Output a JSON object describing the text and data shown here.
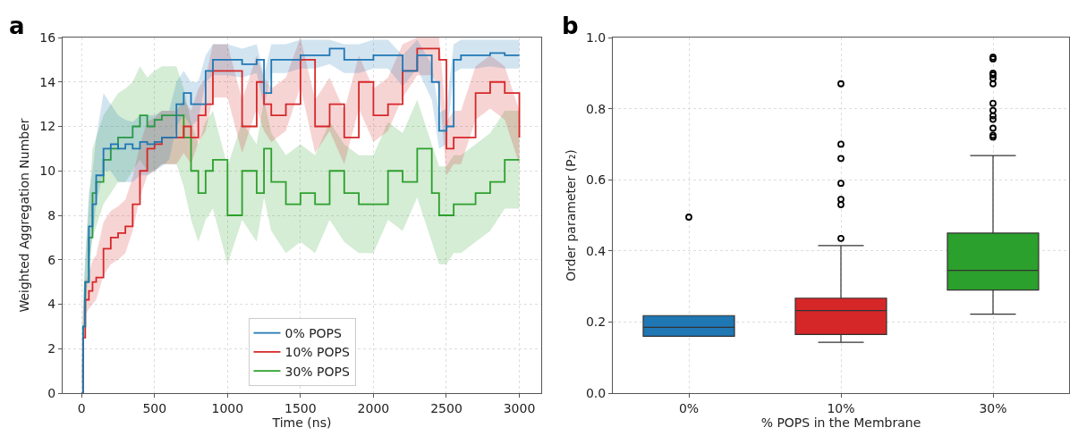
{
  "chart_data": [
    {
      "type": "line",
      "xlabel": "Time (ns)",
      "ylabel": "Weighted Aggregation Number",
      "annotations": [
        "a"
      ],
      "x": [
        0,
        10,
        25,
        50,
        75,
        100,
        150,
        200,
        250,
        300,
        350,
        400,
        450,
        500,
        550,
        600,
        650,
        700,
        750,
        800,
        850,
        900,
        1000,
        1100,
        1200,
        1250,
        1300,
        1400,
        1500,
        1600,
        1700,
        1800,
        1900,
        2000,
        2100,
        2200,
        2300,
        2400,
        2450,
        2500,
        2550,
        2600,
        2700,
        2800,
        2900,
        3000
      ],
      "series": [
        {
          "name": "30% POPS",
          "color": "#2ca02c",
          "type": "step",
          "values": [
            0,
            3,
            5,
            7,
            9,
            9.5,
            10.5,
            11,
            11.5,
            11.5,
            12,
            12.5,
            12,
            12.3,
            12.5,
            12.5,
            12.5,
            11.5,
            10,
            9,
            10,
            10.5,
            8,
            10,
            9,
            11,
            9.5,
            8.5,
            9,
            8.5,
            10,
            9,
            8.5,
            8.5,
            10,
            9.5,
            11,
            9,
            8,
            8,
            8.5,
            8.5,
            9,
            9.5,
            10.5,
            10.5
          ],
          "lower": [
            0,
            2,
            4,
            5.5,
            7,
            7.5,
            8.5,
            9,
            9.5,
            9.5,
            10,
            10.5,
            10,
            10,
            10.3,
            10.3,
            10.3,
            9.3,
            7.8,
            6.8,
            7.8,
            8.3,
            5.8,
            7.8,
            6.8,
            8.8,
            7.3,
            6.3,
            6.8,
            6.3,
            7.8,
            6.8,
            6.3,
            6.3,
            7.8,
            7.3,
            8.8,
            6.8,
            5.8,
            5.8,
            6.3,
            6.3,
            6.8,
            7.3,
            8.3,
            8.3
          ],
          "upper": [
            0,
            4,
            6,
            8.5,
            11,
            11.5,
            12.5,
            13,
            13.5,
            13.7,
            14,
            14.7,
            14.2,
            14.5,
            14.7,
            14.7,
            14.7,
            13.7,
            12.2,
            11.2,
            12.2,
            12.7,
            10.2,
            12.2,
            11.2,
            13.2,
            11.7,
            10.7,
            11.2,
            10.7,
            12.2,
            11.2,
            10.7,
            10.7,
            12.2,
            11.7,
            13.2,
            11.2,
            10.2,
            10.2,
            10.7,
            10.7,
            11.2,
            11.7,
            12.7,
            12.7
          ]
        },
        {
          "name": "10% POPS",
          "color": "#d62728",
          "type": "step",
          "values": [
            0,
            2.5,
            4.2,
            4.6,
            5,
            5.2,
            6.5,
            7,
            7.2,
            7.5,
            8.5,
            10,
            11,
            11.2,
            11.5,
            11.5,
            11.5,
            12,
            11.5,
            12.5,
            13,
            14.5,
            14.5,
            12,
            14,
            13,
            12.5,
            13,
            15,
            12,
            13,
            11.5,
            14,
            12.5,
            13,
            14.5,
            15.5,
            15.5,
            15,
            11,
            11.5,
            11.5,
            13.5,
            14,
            13.5,
            11.5
          ],
          "lower": [
            0,
            1.5,
            3.5,
            3.8,
            4,
            4.2,
            5.3,
            5.8,
            6,
            6.3,
            7.3,
            8.8,
            9.8,
            10,
            10.3,
            10.3,
            10.3,
            10.8,
            10.3,
            11.3,
            11.8,
            13.3,
            13.3,
            10.8,
            12.8,
            11.8,
            11.3,
            11.8,
            13.8,
            10.8,
            11.8,
            10.3,
            12.8,
            11.3,
            11.8,
            13.3,
            14.3,
            14.3,
            13.8,
            9.8,
            10.3,
            10.3,
            12.3,
            12.8,
            12.3,
            10.3
          ],
          "upper": [
            0,
            3.5,
            5,
            5.4,
            6,
            6.2,
            7.7,
            8.2,
            8.4,
            8.7,
            9.7,
            11.2,
            12.2,
            12.4,
            12.7,
            12.7,
            12.7,
            13.2,
            12.7,
            13.7,
            14.2,
            15.7,
            15.7,
            13.2,
            15.2,
            14.2,
            13.7,
            14.2,
            16,
            13.2,
            14.2,
            12.7,
            15.2,
            13.7,
            14.2,
            15.7,
            16,
            16,
            16,
            12.2,
            12.7,
            12.7,
            14.7,
            15.2,
            14.7,
            12.7
          ]
        },
        {
          "name": "0% POPS",
          "color": "#1f77b4",
          "type": "step",
          "values": [
            0,
            3,
            5,
            7.5,
            8.5,
            9.8,
            11,
            11.2,
            11,
            11.2,
            11,
            11.3,
            11.2,
            11.3,
            11.5,
            11.5,
            13,
            13.5,
            13,
            13,
            14.5,
            15,
            15,
            14.8,
            15,
            13.5,
            15,
            15,
            15.2,
            15.2,
            15.5,
            15,
            15,
            15.2,
            15.2,
            14.5,
            15.2,
            14,
            11.8,
            12,
            15,
            15.2,
            15.2,
            15.3,
            15.2,
            15.2
          ],
          "lower": [
            0,
            2,
            4,
            6,
            7,
            8.5,
            10,
            10,
            9.5,
            9.5,
            9.5,
            9.8,
            9.8,
            10,
            10.2,
            10.5,
            12,
            12.5,
            12,
            12.3,
            14,
            14.3,
            14.3,
            14.2,
            14.4,
            12.8,
            14.4,
            14.4,
            14.6,
            14.6,
            14.8,
            14.4,
            14.4,
            14.6,
            14.6,
            13.8,
            14.6,
            13.2,
            11,
            11.2,
            14.4,
            14.6,
            14.6,
            14.7,
            14.6,
            14.6
          ],
          "upper": [
            0,
            4,
            6,
            9,
            10,
            11.5,
            13.5,
            13,
            12.5,
            12.3,
            12.2,
            12.5,
            12.5,
            12.5,
            12.7,
            12.7,
            14,
            14.5,
            14,
            14,
            15.2,
            15.7,
            15.7,
            15.5,
            15.7,
            14.3,
            15.7,
            15.7,
            15.9,
            15.9,
            15.9,
            15.7,
            15.7,
            15.9,
            15.9,
            15.2,
            15.9,
            14.8,
            12.6,
            12.8,
            15.7,
            15.9,
            15.9,
            15.9,
            15.9,
            15.9
          ]
        }
      ],
      "xlim": [
        -130,
        3150
      ],
      "xticks": [
        0,
        500,
        1000,
        1500,
        2000,
        2500,
        3000
      ],
      "ylim": [
        0,
        16
      ],
      "yticks": [
        0,
        2,
        4,
        6,
        8,
        10,
        12,
        14,
        16
      ],
      "grid": true,
      "legend": "bottom"
    },
    {
      "type": "box",
      "xlabel": "% POPS in the Membrane",
      "ylabel": "Order parameter (P₂)",
      "annotations": [
        "b"
      ],
      "categories": [
        "0%",
        "10%",
        "30%"
      ],
      "colors": [
        "#1f77b4",
        "#d62728",
        "#2ca02c"
      ],
      "boxes": [
        {
          "low": 0.16,
          "q1": 0.16,
          "median": 0.185,
          "q3": 0.218,
          "high": 0.218,
          "outliers": [
            0.495
          ]
        },
        {
          "low": 0.143,
          "q1": 0.165,
          "median": 0.232,
          "q3": 0.267,
          "high": 0.415,
          "outliers": [
            0.435,
            0.53,
            0.545,
            0.59,
            0.66,
            0.7,
            0.87
          ]
        },
        {
          "low": 0.222,
          "q1": 0.29,
          "median": 0.345,
          "q3": 0.45,
          "high": 0.668,
          "outliers": [
            0.72,
            0.725,
            0.745,
            0.77,
            0.78,
            0.795,
            0.815,
            0.87,
            0.885,
            0.895,
            0.9,
            0.94,
            0.945
          ]
        }
      ],
      "ylim": [
        0,
        1
      ],
      "yticks": [
        {
          "value": 0,
          "label": "0.0"
        },
        0.2,
        0.4,
        0.6,
        0.8,
        {
          "value": 1,
          "label": "1.0"
        }
      ],
      "grid": true
    }
  ]
}
